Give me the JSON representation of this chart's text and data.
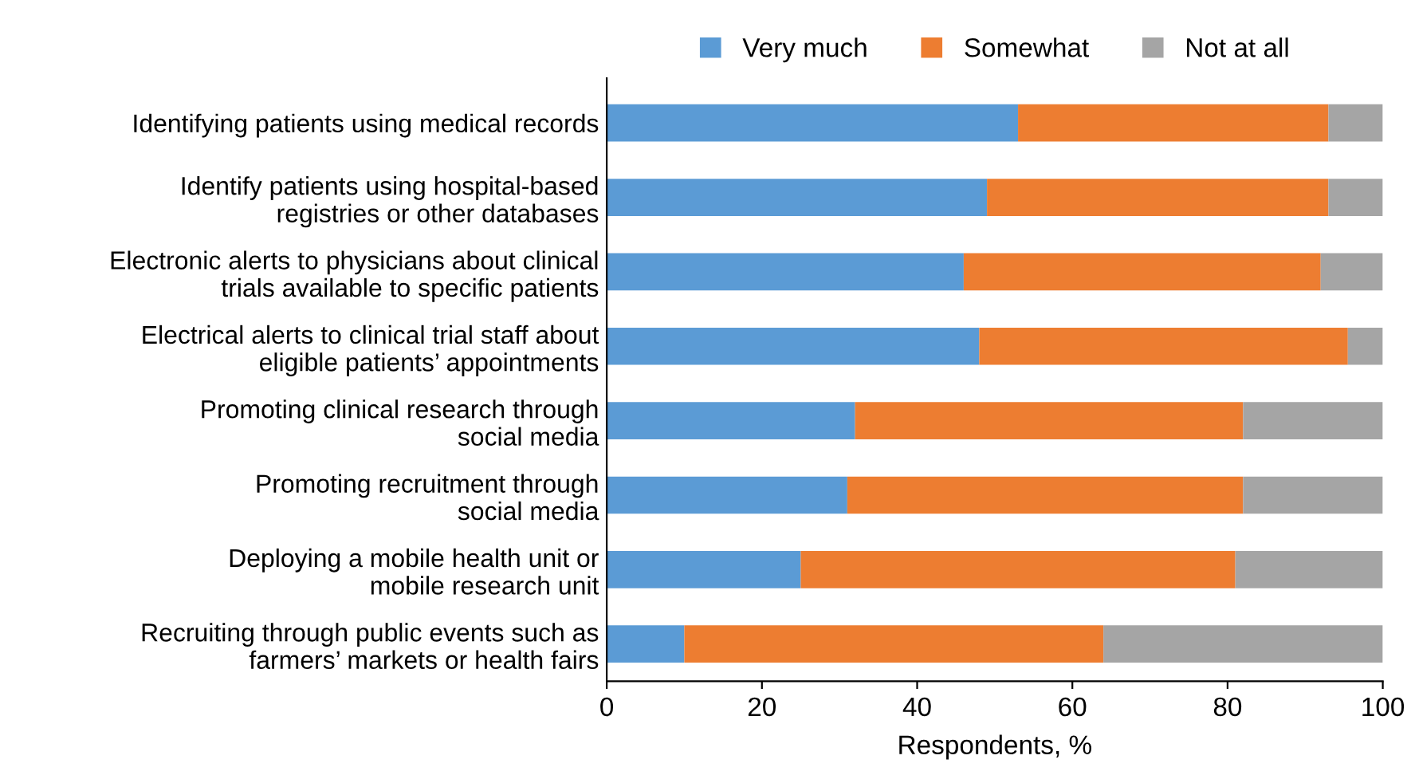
{
  "chart_data": {
    "type": "bar",
    "orientation": "horizontal",
    "stacked": true,
    "categories": [
      "Identifying patients using medical records",
      "Identify patients using hospital-based\nregistries or other databases",
      "Electronic alerts to physicians about clinical\ntrials available to specific patients",
      "Electrical alerts to clinical trial staff about\neligible patients’ appointments",
      "Promoting clinical research through\nsocial media",
      "Promoting recruitment through\nsocial media",
      "Deploying a mobile health unit or\nmobile research unit",
      "Recruiting through public events such as\nfarmers’ markets or health fairs"
    ],
    "series": [
      {
        "name": "Very much",
        "color": "#5b9bd5",
        "values": [
          53,
          49,
          46,
          48,
          32,
          31,
          25,
          10
        ]
      },
      {
        "name": "Somewhat",
        "color": "#ed7d31",
        "values": [
          40,
          44,
          46,
          47.5,
          50,
          51,
          56,
          54
        ]
      },
      {
        "name": "Not at all",
        "color": "#a5a5a5",
        "values": [
          7,
          7,
          8,
          4.5,
          18,
          18,
          19,
          36
        ]
      }
    ],
    "xlim": [
      0,
      100
    ],
    "xticks": [
      0,
      20,
      40,
      60,
      80,
      100
    ],
    "xlabel": "Respondents, %",
    "grid": false,
    "legend": "top"
  }
}
